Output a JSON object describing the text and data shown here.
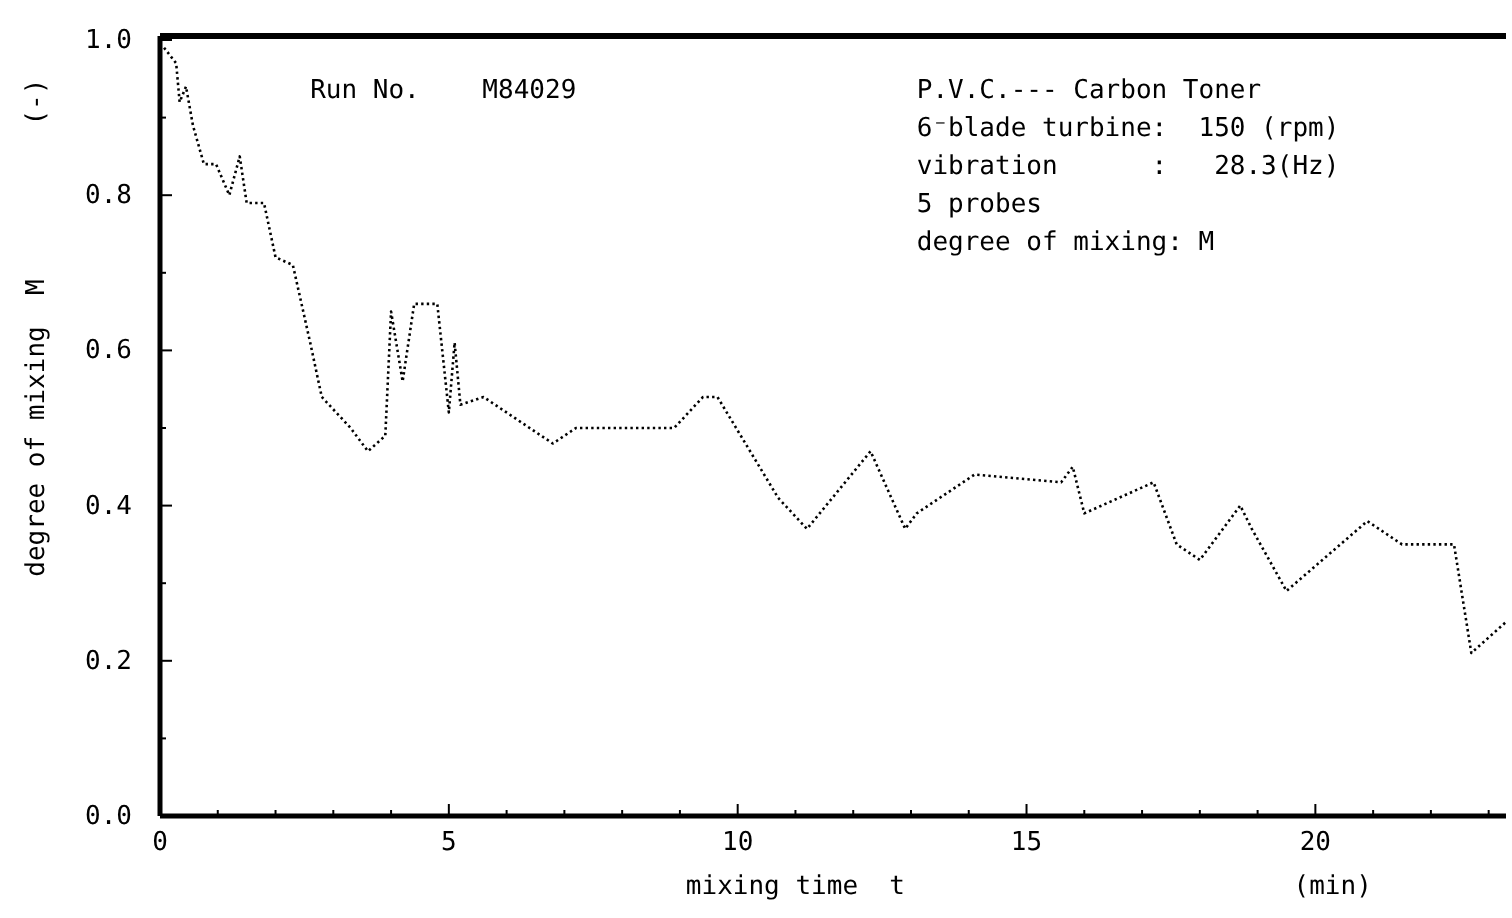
{
  "chart_data": {
    "type": "line",
    "xlabel": "mixing time  t",
    "ylabel": "degree of mixing  M",
    "annotations": [
      "(-)",
      "(min)",
      "Run No.    M84029",
      "P.V.C.--- Carbon Toner",
      "6⁻blade turbine:  150 (rpm)",
      "vibration      :   28.3(Hz)",
      "5 probes",
      "degree of mixing: M"
    ],
    "xlim": [
      0,
      23.3
    ],
    "ylim": [
      0,
      1
    ],
    "xticks": [
      0,
      {
        "value": 1,
        "label": null
      },
      {
        "value": 2,
        "label": null
      },
      {
        "value": 3,
        "label": null
      },
      {
        "value": 4,
        "label": null
      },
      5,
      {
        "value": 6,
        "label": null
      },
      {
        "value": 7,
        "label": null
      },
      {
        "value": 8,
        "label": null
      },
      {
        "value": 9,
        "label": null
      },
      10,
      {
        "value": 11,
        "label": null
      },
      {
        "value": 12,
        "label": null
      },
      {
        "value": 13,
        "label": null
      },
      {
        "value": 14,
        "label": null
      },
      15,
      {
        "value": 16,
        "label": null
      },
      {
        "value": 17,
        "label": null
      },
      {
        "value": 18,
        "label": null
      },
      {
        "value": 19,
        "label": null
      },
      20,
      {
        "value": 21,
        "label": null
      },
      {
        "value": 22,
        "label": null
      },
      {
        "value": 23,
        "label": null
      }
    ],
    "yticks": [
      {
        "value": 0,
        "label": "0.0"
      },
      {
        "value": 0.1,
        "label": null
      },
      0.2,
      {
        "value": 0.3,
        "label": null
      },
      0.4,
      {
        "value": 0.5,
        "label": null
      },
      0.6,
      {
        "value": 0.7,
        "label": null
      },
      0.8,
      {
        "value": 0.9,
        "label": null
      },
      {
        "value": 1,
        "label": "1.0"
      }
    ],
    "grid": false,
    "marker": "none",
    "line_style": "dotted",
    "series": [
      {
        "color": "#000000",
        "x": [
          0.07,
          0.28,
          0.34,
          0.45,
          0.57,
          0.76,
          0.97,
          1.2,
          1.38,
          1.5,
          1.8,
          2.0,
          2.3,
          2.6,
          2.8,
          3.3,
          3.6,
          3.9,
          4.0,
          4.2,
          4.4,
          4.8,
          5.0,
          5.1,
          5.2,
          5.6,
          6.2,
          6.8,
          7.2,
          8.5,
          8.9,
          9.4,
          9.65,
          10.7,
          11.2,
          12.3,
          12.9,
          13.1,
          14.1,
          15.6,
          15.8,
          16.0,
          17.2,
          17.6,
          18.0,
          18.7,
          18.9,
          19.5,
          20.9,
          21.5,
          22.4,
          22.7,
          23.0,
          23.3
        ],
        "values": [
          0.99,
          0.97,
          0.92,
          0.94,
          0.89,
          0.84,
          0.84,
          0.8,
          0.85,
          0.79,
          0.79,
          0.72,
          0.71,
          0.61,
          0.54,
          0.5,
          0.47,
          0.49,
          0.65,
          0.56,
          0.66,
          0.66,
          0.52,
          0.61,
          0.53,
          0.54,
          0.51,
          0.48,
          0.5,
          0.5,
          0.5,
          0.54,
          0.54,
          0.41,
          0.37,
          0.47,
          0.37,
          0.39,
          0.44,
          0.43,
          0.45,
          0.39,
          0.43,
          0.35,
          0.33,
          0.4,
          0.37,
          0.29,
          0.38,
          0.35,
          0.35,
          0.21,
          0.23,
          0.25
        ]
      }
    ]
  }
}
